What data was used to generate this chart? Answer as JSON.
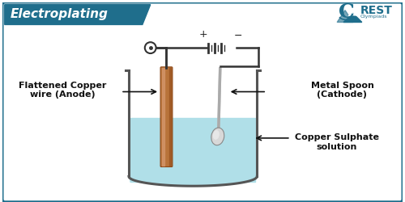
{
  "title": "Electroplating",
  "title_bg": "#1f6e8c",
  "title_text_color": "#ffffff",
  "border_color": "#1f6e8c",
  "bg_color": "#ffffff",
  "beaker_stroke": "#555555",
  "solution_color": "#b0dfe8",
  "copper_color_main": "#b8733a",
  "copper_color_light": "#d4956a",
  "copper_color_dark": "#8b4513",
  "spoon_color": "#d0d0d0",
  "spoon_dark": "#aaaaaa",
  "wire_color": "#333333",
  "label_anode": "Flattened Copper\nwire (Anode)",
  "label_cathode": "Metal Spoon\n(Cathode)",
  "label_solution": "Copper Sulphate\nsolution",
  "plus_label": "+",
  "minus_label": "−",
  "crest_color": "#1f6e8c",
  "crest_text": "CREST",
  "crest_sub": "Olympiads"
}
